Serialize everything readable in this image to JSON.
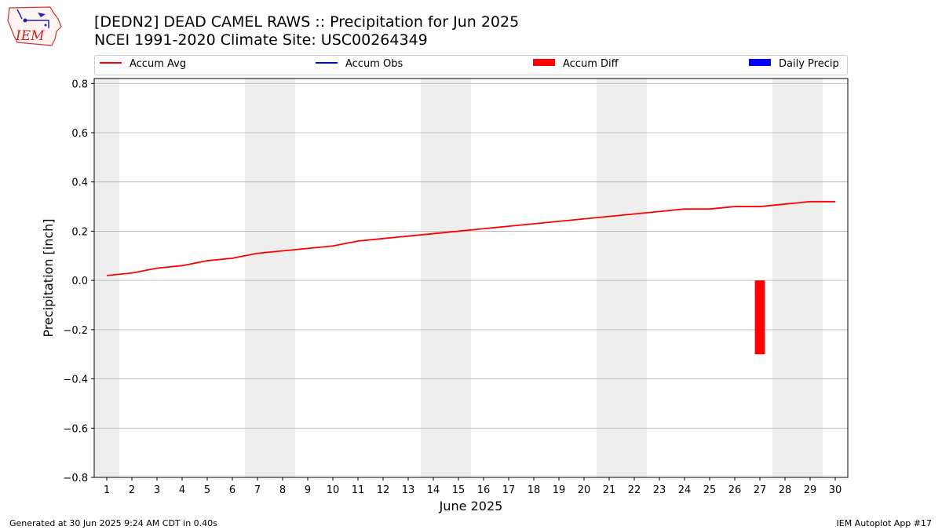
{
  "header": {
    "title_line1": "[DEDN2] DEAD CAMEL RAWS :: Precipitation for Jun 2025",
    "title_line2": "NCEI 1991-2020 Climate Site: USC00264349",
    "logo_text": "IEM"
  },
  "legend": [
    {
      "label": "Accum Avg",
      "color": "#ff0000",
      "kind": "line"
    },
    {
      "label": "Accum Obs",
      "color": "#0000ff",
      "kind": "line"
    },
    {
      "label": "Accum Diff",
      "color": "#ff0000",
      "kind": "patch"
    },
    {
      "label": "Daily Precip",
      "color": "#0000ff",
      "kind": "patch"
    }
  ],
  "footer": {
    "left": "Generated at 30 Jun 2025 9:24 AM CDT in 0.40s",
    "right": "IEM Autoplot App #17"
  },
  "chart_data": {
    "type": "line",
    "xlabel": "June 2025",
    "ylabel": "Precipitation [inch]",
    "xlim": [
      0.5,
      30.5
    ],
    "ylim": [
      -0.8,
      0.82
    ],
    "x": [
      1,
      2,
      3,
      4,
      5,
      6,
      7,
      8,
      9,
      10,
      11,
      12,
      13,
      14,
      15,
      16,
      17,
      18,
      19,
      20,
      21,
      22,
      23,
      24,
      25,
      26,
      27,
      28,
      29,
      30
    ],
    "x_tick_labels": [
      "1",
      "2",
      "3",
      "4",
      "5",
      "6",
      "7",
      "8",
      "9",
      "10",
      "11",
      "12",
      "13",
      "14",
      "15",
      "16",
      "17",
      "18",
      "19",
      "20",
      "21",
      "22",
      "23",
      "24",
      "25",
      "26",
      "27",
      "28",
      "29",
      "30"
    ],
    "y_ticks": [
      -0.8,
      -0.6,
      -0.4,
      -0.2,
      0.0,
      0.2,
      0.4,
      0.6,
      0.8
    ],
    "y_tick_labels": [
      "−0.8",
      "−0.6",
      "−0.4",
      "−0.2",
      "0.0",
      "0.2",
      "0.4",
      "0.6",
      "0.8"
    ],
    "grid": "horizontal",
    "legend_position": "top",
    "weekend_shading": [
      [
        0.5,
        1.5
      ],
      [
        6.5,
        8.5
      ],
      [
        13.5,
        15.5
      ],
      [
        20.5,
        22.5
      ],
      [
        27.5,
        29.5
      ]
    ],
    "series": [
      {
        "name": "Accum Avg",
        "type": "line",
        "color": "#ff0000",
        "values": [
          0.02,
          0.03,
          0.05,
          0.06,
          0.08,
          0.09,
          0.11,
          0.12,
          0.13,
          0.14,
          0.16,
          0.17,
          0.18,
          0.19,
          0.2,
          0.21,
          0.22,
          0.23,
          0.24,
          0.25,
          0.26,
          0.27,
          0.28,
          0.29,
          0.29,
          0.3,
          0.3,
          0.31,
          0.32,
          0.32
        ]
      },
      {
        "name": "Accum Diff",
        "type": "bar",
        "color": "#ff0000",
        "points": [
          {
            "x": 27,
            "y": -0.3
          }
        ]
      }
    ]
  }
}
